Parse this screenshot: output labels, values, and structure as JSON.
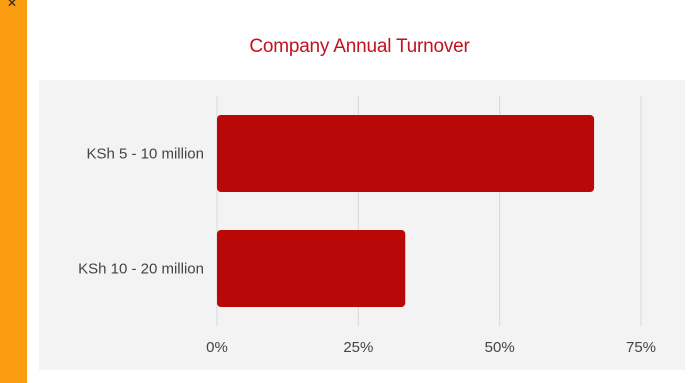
{
  "colors": {
    "bar": "#b80808",
    "accent_strip": "#f99c10",
    "title": "#c1121f",
    "grid": "#d8d8d8",
    "plot_bg": "#f3f3f3"
  },
  "chart_data": {
    "type": "bar",
    "orientation": "horizontal",
    "title": "Company Annual Turnover",
    "categories": [
      "KSh 5 - 10 million",
      "KSh 10 - 20 million"
    ],
    "values": [
      66.7,
      33.3
    ],
    "xlim": [
      0,
      75
    ],
    "x_ticks": [
      0,
      25,
      50,
      75
    ],
    "x_tick_labels": [
      "0%",
      "25%",
      "50%",
      "75%"
    ],
    "grid": true,
    "legend": "none"
  }
}
